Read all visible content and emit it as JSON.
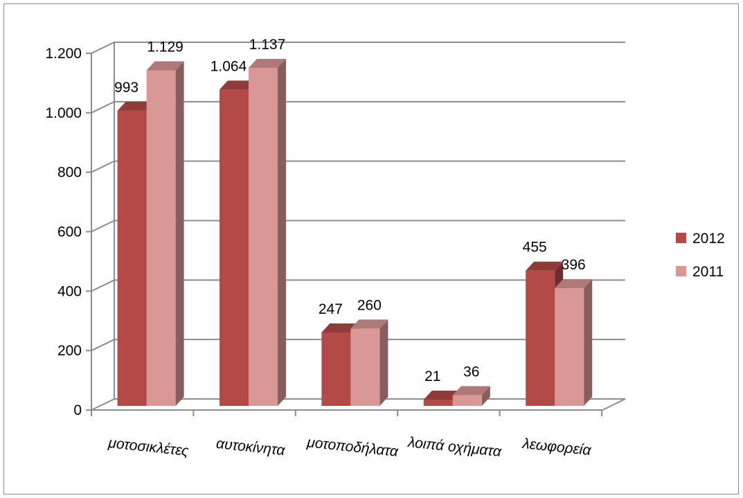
{
  "chart_data": {
    "type": "bar",
    "categories": [
      "μοτοσικλέτες",
      "αυτοκίνητα",
      "μοτοποδήλατα",
      "λοιπά οχήματα",
      "λεωφορεία"
    ],
    "series": [
      {
        "name": "2012",
        "values": [
          993,
          1064,
          247,
          21,
          455
        ],
        "labels": [
          "993",
          "1.064",
          "247",
          "21",
          "455"
        ],
        "color": "#b34a48"
      },
      {
        "name": "2011",
        "values": [
          1129,
          1137,
          260,
          36,
          396
        ],
        "labels": [
          "1.129",
          "1.137",
          "260",
          "36",
          "396"
        ],
        "color": "#d99795"
      }
    ],
    "ylim": [
      0,
      1200
    ],
    "yticks": [
      0,
      200,
      400,
      600,
      800,
      1000,
      1200
    ],
    "ytick_labels": [
      "0",
      "200",
      "400",
      "600",
      "800",
      "1.000",
      "1.200"
    ],
    "grid": true,
    "legend": "right",
    "style": "3d-clustered-column",
    "colors": {
      "wall": "#8c8c8c",
      "grid": "#8c8c8c",
      "axis": "#8c8c8c"
    }
  }
}
